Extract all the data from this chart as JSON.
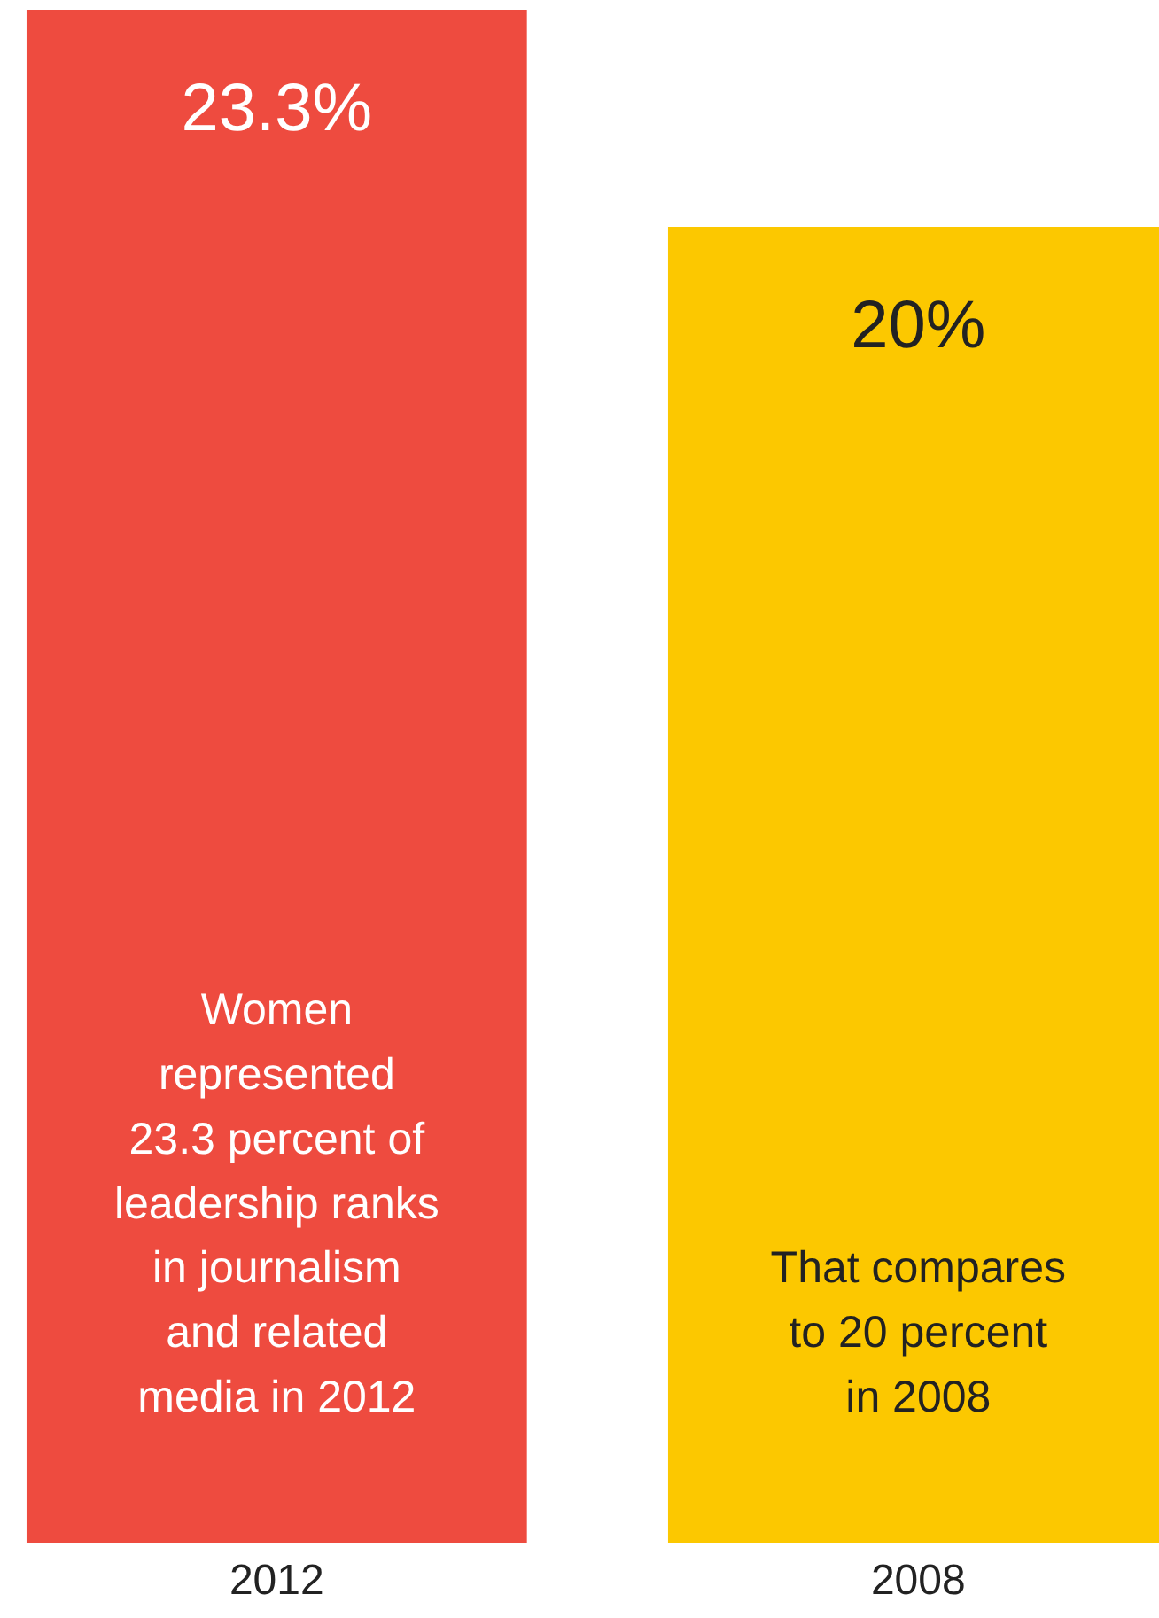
{
  "chart_data": {
    "type": "bar",
    "categories": [
      "2012",
      "2008"
    ],
    "values": [
      23.3,
      20
    ],
    "colors": [
      "#ee4b3f",
      "#fcc800"
    ],
    "value_labels": [
      "23.3%",
      "20%"
    ],
    "annotations": [
      "Women\nrepresented\n23.3 percent of\nleadership ranks\nin journalism\nand related\nmedia in 2012",
      "That compares\nto 20 percent\nin 2008"
    ]
  }
}
